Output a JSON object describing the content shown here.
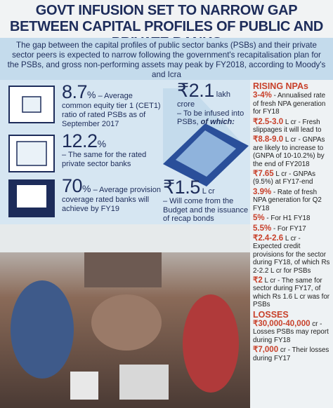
{
  "header": {
    "title": "GOVT INFUSION SET TO NARROW GAP BETWEEN CAPITAL PROFILES OF PUBLIC AND PRIVATE BANKS",
    "subtitle": "The gap between the capital profiles of public sector banks (PSBs) and their private sector peers is expected to narrow following the government's recapitalisation plan for the PSBs, and gross non-performing assets may peak by FY2018, according to Moody's and Icra"
  },
  "stats": [
    {
      "value": "8.7",
      "unit": "%",
      "text": "– Average common equity tier 1 (CET1) ratio of rated PSBs as of September 2017"
    },
    {
      "value": "12.2",
      "unit": "%",
      "text": "– The same for the rated private sector banks"
    },
    {
      "value": "70",
      "unit": "%",
      "text": "– Average provision coverage rated banks will achieve by FY19"
    }
  ],
  "infusion": {
    "total": {
      "value": "₹2.1",
      "unit": "lakh crore",
      "text": "– To be infused into PSBs,",
      "emphasis": "of which:"
    },
    "budget": {
      "value": "₹1.5",
      "unit": "L cr",
      "text": "– Will come from the Budget and the issuance of recap bonds"
    }
  },
  "npa": {
    "heading": "RISING NPAs",
    "items": [
      {
        "highlight": "3-4%",
        "text": " - Annualised rate of fresh NPA generation for FY18"
      },
      {
        "highlight": "₹2.5-3.0",
        "text": " L cr - Fresh slippages it will lead to"
      },
      {
        "highlight": "₹8.8-9.0",
        "text": " L cr - GNPAs are likely to increase to (GNPA of 10-10.2%) by the end of FY2018"
      },
      {
        "highlight": "₹7.65",
        "text": " L cr - GNPAs (9.5%) at FY17-end"
      },
      {
        "highlight": "3.9%",
        "text": " - Rate of fresh NPA generation for Q2 FY18"
      },
      {
        "highlight": "5%",
        "text": " - For H1 FY18"
      },
      {
        "highlight": "5.5%",
        "text": " - For FY17"
      },
      {
        "highlight": "₹2.4-2.6",
        "text": " L cr - Expected credit provisions for the sector during FY18, of which Rs 2-2.2 L cr for PSBs"
      },
      {
        "highlight": "₹2",
        "text": " L cr - The same for sector during FY17, of which Rs 1.6 L cr was for PSBs"
      }
    ]
  },
  "losses": {
    "heading": "LOSSES",
    "items": [
      {
        "highlight": "₹30,000-40,000",
        "text": " cr - Losses PSBs may report during FY18"
      },
      {
        "highlight": "₹7,000",
        "text": " cr - Their losses during FY17"
      }
    ]
  }
}
